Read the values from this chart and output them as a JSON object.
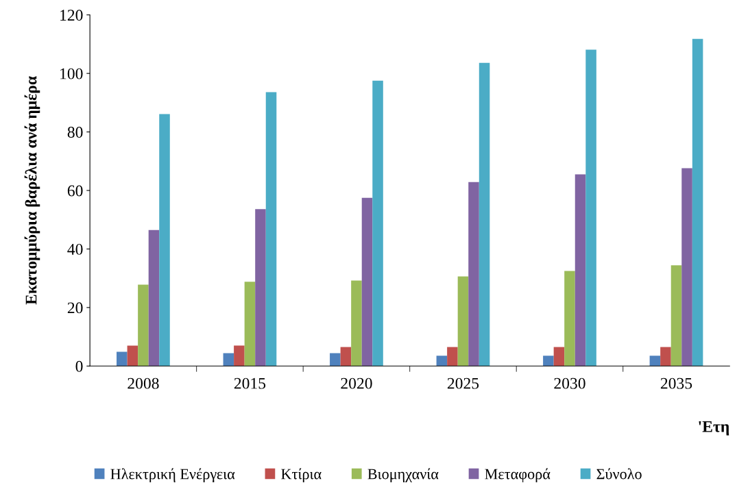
{
  "chart_data": {
    "type": "bar",
    "categories": [
      "2008",
      "2015",
      "2020",
      "2025",
      "2030",
      "2035"
    ],
    "xlabel": "'Ετη",
    "ylabel": "Εκατομμύρια βαρέλια ανά ημέρα",
    "series": [
      {
        "name": "Ηλεκτρική Ενέργεια",
        "color": "#4f81bd",
        "values": [
          4.9,
          4.4,
          4.4,
          3.5,
          3.5,
          3.5
        ]
      },
      {
        "name": "Κτίρια",
        "color": "#c0504d",
        "values": [
          7.0,
          7.0,
          6.5,
          6.5,
          6.5,
          6.5
        ]
      },
      {
        "name": "Βιομηχανία",
        "color": "#9bbb59",
        "values": [
          27.8,
          28.8,
          29.2,
          30.6,
          32.5,
          34.4
        ]
      },
      {
        "name": "Μεταφορά",
        "color": "#8064a2",
        "values": [
          46.5,
          53.6,
          57.5,
          62.9,
          65.5,
          67.6
        ]
      },
      {
        "name": "Σύνολο",
        "color": "#4bacc6",
        "values": [
          86.1,
          93.6,
          97.5,
          103.6,
          108.1,
          111.8
        ]
      }
    ],
    "ylim": [
      0,
      120
    ],
    "yticks": [
      0,
      20,
      40,
      60,
      80,
      100,
      120
    ],
    "legend": "bottom",
    "grid": false
  }
}
